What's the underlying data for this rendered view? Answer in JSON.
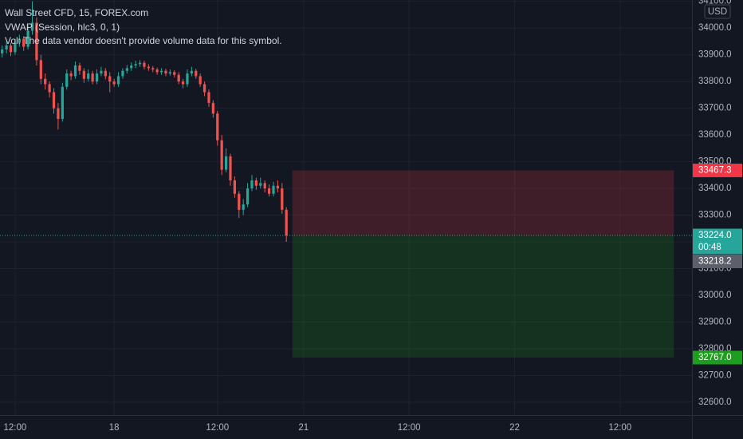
{
  "chart_data": {
    "type": "candlestick",
    "title": "Wall Street CFD, 15, FOREX.com",
    "subtitle": "VWAP (Session, hlc3, 0, 1)",
    "annotation": "Vol: The data vendor doesn't provide volume data for this symbol.",
    "currency": "USD",
    "up_color": "#26a69a",
    "down_color": "#ef5350",
    "grid": true,
    "x": [
      0,
      1,
      2,
      3,
      4,
      5,
      6,
      7,
      8,
      9,
      10,
      11,
      12,
      13,
      14,
      15,
      16,
      17,
      18,
      19,
      20,
      21,
      22,
      23,
      24,
      25,
      26,
      27,
      28,
      29,
      30,
      31,
      32,
      33,
      34,
      35,
      36,
      37,
      38,
      39,
      40,
      41,
      42,
      43,
      44,
      45,
      46,
      47,
      48,
      49,
      50,
      51,
      52,
      53,
      54,
      55,
      56,
      57,
      58,
      59,
      60,
      61,
      62,
      63,
      64,
      65,
      66
    ],
    "open": [
      33905,
      33920,
      33935,
      33910,
      33945,
      33960,
      33930,
      33990,
      34020,
      33880,
      33810,
      33790,
      33760,
      33700,
      33660,
      33780,
      33830,
      33820,
      33860,
      33840,
      33810,
      33830,
      33800,
      33830,
      33840,
      33820,
      33800,
      33790,
      33820,
      33840,
      33850,
      33860,
      33865,
      33870,
      33855,
      33850,
      33845,
      33835,
      33840,
      33830,
      33835,
      33825,
      33800,
      33790,
      33830,
      33840,
      33820,
      33790,
      33760,
      33720,
      33680,
      33580,
      33470,
      33520,
      33430,
      33380,
      33320,
      33340,
      33400,
      33430,
      33410,
      33420,
      33400,
      33380,
      33410,
      33400,
      33320
    ],
    "high": [
      33935,
      33950,
      33945,
      33960,
      33975,
      33970,
      34010,
      34100,
      34040,
      33900,
      33830,
      33800,
      33775,
      33720,
      33795,
      33845,
      33840,
      33875,
      33870,
      33850,
      33845,
      33840,
      33845,
      33855,
      33850,
      33835,
      33810,
      33835,
      33850,
      33862,
      33872,
      33878,
      33880,
      33878,
      33865,
      33858,
      33852,
      33850,
      33848,
      33845,
      33842,
      33835,
      33810,
      33845,
      33855,
      33848,
      33830,
      33800,
      33770,
      33730,
      33690,
      33600,
      33550,
      33530,
      33445,
      33390,
      33360,
      33420,
      33450,
      33440,
      33440,
      33430,
      33415,
      33425,
      33430,
      33420,
      33330
    ],
    "low": [
      33890,
      33905,
      33895,
      33900,
      33930,
      33915,
      33920,
      33975,
      33860,
      33790,
      33770,
      33740,
      33680,
      33620,
      33650,
      33770,
      33805,
      33810,
      33825,
      33795,
      33800,
      33790,
      33790,
      33820,
      33808,
      33760,
      33780,
      33780,
      33810,
      33830,
      33840,
      33850,
      33855,
      33845,
      33840,
      33835,
      33825,
      33825,
      33820,
      33822,
      33815,
      33790,
      33775,
      33780,
      33820,
      33810,
      33780,
      33745,
      33705,
      33665,
      33560,
      33450,
      33460,
      33410,
      33365,
      33290,
      33300,
      33330,
      33390,
      33395,
      33400,
      33385,
      33370,
      33370,
      33385,
      33305,
      33200
    ],
    "close": [
      33920,
      33935,
      33910,
      33945,
      33960,
      33930,
      33990,
      34020,
      33880,
      33810,
      33790,
      33760,
      33700,
      33660,
      33780,
      33830,
      33820,
      33860,
      33840,
      33810,
      33830,
      33800,
      33830,
      33840,
      33820,
      33800,
      33790,
      33820,
      33840,
      33850,
      33860,
      33865,
      33870,
      33855,
      33850,
      33845,
      33835,
      33840,
      33830,
      33835,
      33825,
      33800,
      33790,
      33830,
      33840,
      33820,
      33790,
      33760,
      33720,
      33680,
      33580,
      33470,
      33520,
      33430,
      33380,
      33320,
      33340,
      33400,
      33430,
      33410,
      33420,
      33400,
      33380,
      33410,
      33400,
      33320,
      33224
    ],
    "xlim": [
      -0.5,
      160.2
    ],
    "xticks": [
      {
        "value": 3,
        "label": "12:00"
      },
      {
        "value": 26,
        "label": "18"
      },
      {
        "value": 50,
        "label": "12:00"
      },
      {
        "value": 70,
        "label": "21"
      },
      {
        "value": 94.5,
        "label": "12:00"
      },
      {
        "value": 119,
        "label": "22"
      },
      {
        "value": 143.5,
        "label": "12:00"
      }
    ],
    "ylim": [
      32552,
      34105
    ],
    "yticks": [
      {
        "value": 32600,
        "label": "32600.0"
      },
      {
        "value": 32700,
        "label": "32700.0"
      },
      {
        "value": 32800,
        "label": "32800.0"
      },
      {
        "value": 32900,
        "label": "32900.0"
      },
      {
        "value": 33000,
        "label": "33000.0"
      },
      {
        "value": 33100,
        "label": "33100.0"
      },
      {
        "value": 33200,
        "label": "33200.0"
      },
      {
        "value": 33300,
        "label": "33300.0"
      },
      {
        "value": 33400,
        "label": "33400.0"
      },
      {
        "value": 33500,
        "label": "33500.0"
      },
      {
        "value": 33600,
        "label": "33600.0"
      },
      {
        "value": 33700,
        "label": "33700.0"
      },
      {
        "value": 33800,
        "label": "33800.0"
      },
      {
        "value": 33900,
        "label": "33900.0"
      },
      {
        "value": 34000,
        "label": "34000.0"
      },
      {
        "value": 34100,
        "label": "34100.0"
      }
    ],
    "last_price": {
      "value": 33224,
      "label": "33224.0",
      "countdown": "00:48",
      "color": "#26a69a"
    },
    "marker_price": {
      "value": 33218.2,
      "label": "33218.2",
      "color": "#5d606b"
    },
    "position": {
      "start_x": 67.4,
      "end_x": 156,
      "stop": {
        "value": 33467.3,
        "label": "33467.3",
        "color": "#f23645"
      },
      "entry": 33224,
      "target": {
        "value": 32767,
        "label": "32767.0",
        "color": "#1e9e1e"
      }
    }
  }
}
